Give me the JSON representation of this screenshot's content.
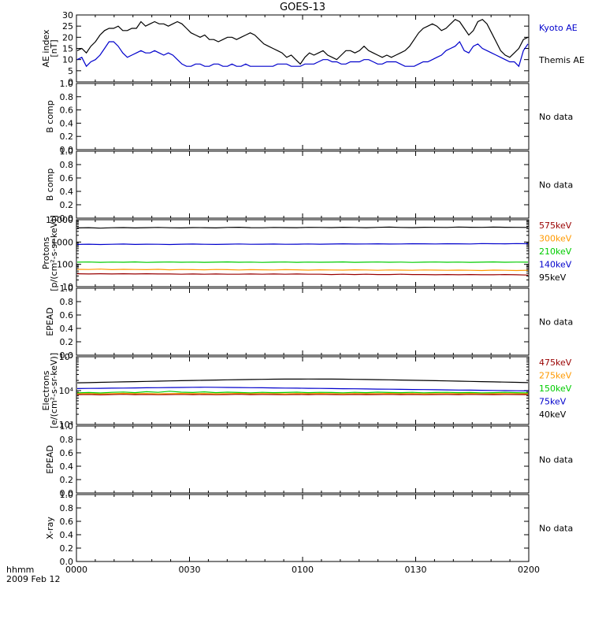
{
  "title": "GOES-13",
  "time_axis": {
    "unit_label": "hhmm",
    "date_label": "2009 Feb 12",
    "ticks": [
      "0000",
      "0030",
      "0100",
      "0130",
      "0200"
    ]
  },
  "no_data_text": "No data",
  "chart_data": [
    {
      "type": "line",
      "ylabel_lines": [
        "AE index",
        "[nT]"
      ],
      "ylim": [
        0,
        30
      ],
      "yscale": "linear",
      "yticks": [
        0,
        5,
        10,
        15,
        20,
        25,
        30
      ],
      "ytick_labels": [
        "0",
        "5",
        "10",
        "15",
        "20",
        "25",
        "30"
      ],
      "series": [
        {
          "name": "Kyoto AE",
          "color": "#0000cc",
          "values": [
            10,
            11,
            7,
            9,
            10,
            12,
            15,
            18,
            18,
            16,
            13,
            11,
            12,
            13,
            14,
            13,
            13,
            14,
            13,
            12,
            13,
            12,
            10,
            8,
            7,
            7,
            8,
            8,
            7,
            7,
            8,
            8,
            7,
            7,
            8,
            7,
            7,
            8,
            7,
            7,
            7,
            7,
            7,
            7,
            8,
            8,
            8,
            7,
            7,
            7,
            8,
            8,
            8,
            9,
            10,
            10,
            9,
            9,
            8,
            8,
            9,
            9,
            9,
            10,
            10,
            9,
            8,
            8,
            9,
            9,
            9,
            8,
            7,
            7,
            7,
            8,
            9,
            9,
            10,
            11,
            12,
            14,
            15,
            16,
            18,
            14,
            13,
            16,
            17,
            15,
            14,
            13,
            12,
            11,
            10,
            9,
            9,
            7,
            14,
            17
          ]
        },
        {
          "name": "Themis AE",
          "color": "#000000",
          "values": [
            14,
            15,
            13,
            16,
            18,
            21,
            23,
            24,
            24,
            25,
            23,
            23,
            24,
            24,
            27,
            25,
            26,
            27,
            26,
            26,
            25,
            26,
            27,
            26,
            24,
            22,
            21,
            20,
            21,
            19,
            19,
            18,
            19,
            20,
            20,
            19,
            20,
            21,
            22,
            21,
            19,
            17,
            16,
            15,
            14,
            13,
            11,
            12,
            10,
            8,
            11,
            13,
            12,
            13,
            14,
            12,
            11,
            10,
            12,
            14,
            14,
            13,
            14,
            16,
            14,
            13,
            12,
            11,
            12,
            11,
            12,
            13,
            14,
            16,
            19,
            22,
            24,
            25,
            26,
            25,
            23,
            24,
            26,
            28,
            27,
            24,
            21,
            23,
            27,
            28,
            26,
            22,
            18,
            14,
            12,
            11,
            13,
            15,
            19,
            20
          ]
        }
      ]
    },
    {
      "type": "line",
      "ylabel_lines": [
        "B comp"
      ],
      "ylim": [
        0,
        1
      ],
      "yscale": "linear",
      "yticks": [
        0,
        0.2,
        0.4,
        0.6,
        0.8,
        1.0
      ],
      "ytick_labels": [
        "0.0",
        "0.2",
        "0.4",
        "0.6",
        "0.8",
        "1.0"
      ],
      "no_data": true,
      "series": []
    },
    {
      "type": "line",
      "ylabel_lines": [
        "B comp"
      ],
      "ylim": [
        0,
        1
      ],
      "yscale": "linear",
      "yticks": [
        0,
        0.2,
        0.4,
        0.6,
        0.8,
        1.0
      ],
      "ytick_labels": [
        "0.0",
        "0.2",
        "0.4",
        "0.6",
        "0.8",
        "1.0"
      ],
      "no_data": true,
      "series": []
    },
    {
      "type": "line",
      "ylabel_lines": [
        "Protons",
        "[p/(cm²-s-sr-keV)]"
      ],
      "ylim": [
        10,
        10000
      ],
      "yscale": "log",
      "yticks": [
        10,
        100,
        1000,
        10000
      ],
      "ytick_labels": [
        "10",
        "100",
        "1000",
        "10000"
      ],
      "series": [
        {
          "name": "575keV",
          "color": "#990000",
          "values": [
            38,
            37,
            38,
            37,
            38,
            37,
            38,
            37,
            37,
            36,
            37,
            36,
            37,
            36,
            36,
            37,
            36,
            37,
            36,
            37,
            36,
            36,
            35,
            36,
            35,
            36,
            35,
            35,
            36,
            35,
            35,
            34,
            35,
            34,
            35,
            34,
            34,
            35,
            34,
            33
          ]
        },
        {
          "name": "300keV",
          "color": "#ff9900",
          "values": [
            60,
            59,
            61,
            58,
            60,
            59,
            58,
            60,
            57,
            59,
            58,
            57,
            59,
            58,
            56,
            58,
            57,
            56,
            58,
            57,
            55,
            57,
            56,
            55,
            57,
            56,
            54,
            56,
            55,
            54,
            56,
            55,
            54,
            55,
            54,
            53,
            55,
            54,
            53,
            54
          ]
        },
        {
          "name": "210keV",
          "color": "#00cc00",
          "values": [
            125,
            127,
            123,
            126,
            124,
            128,
            122,
            125,
            127,
            124,
            126,
            123,
            125,
            128,
            124,
            126,
            122,
            125,
            127,
            123,
            126,
            124,
            125,
            128,
            123,
            125,
            127,
            124,
            126,
            122,
            125,
            127,
            124,
            126,
            123,
            125,
            128,
            124,
            126,
            125
          ]
        },
        {
          "name": "140keV",
          "color": "#0000cc",
          "values": [
            780,
            800,
            770,
            790,
            810,
            780,
            800,
            790,
            770,
            800,
            810,
            790,
            780,
            800,
            820,
            790,
            800,
            810,
            790,
            800,
            820,
            800,
            810,
            830,
            810,
            820,
            830,
            810,
            820,
            840,
            830,
            820,
            840,
            830,
            820,
            850,
            840,
            830,
            850,
            840
          ]
        },
        {
          "name": "95keV",
          "color": "#000000",
          "values": [
            4300,
            4400,
            4200,
            4350,
            4450,
            4300,
            4400,
            4500,
            4350,
            4300,
            4450,
            4400,
            4300,
            4500,
            4600,
            4400,
            4350,
            4500,
            4450,
            4400,
            4550,
            4500,
            4450,
            4600,
            4500,
            4400,
            4550,
            4650,
            4500,
            4450,
            4600,
            4550,
            4500,
            4700,
            4600,
            4550,
            4650,
            4600,
            4550,
            4500
          ]
        }
      ]
    },
    {
      "type": "line",
      "ylabel_lines": [
        "EPEAD"
      ],
      "ylim": [
        0,
        1
      ],
      "yscale": "linear",
      "yticks": [
        0,
        0.2,
        0.4,
        0.6,
        0.8,
        1.0
      ],
      "ytick_labels": [
        "0.0",
        "0.2",
        "0.4",
        "0.6",
        "0.8",
        "1.0"
      ],
      "no_data": true,
      "series": []
    },
    {
      "type": "line",
      "ylabel_lines": [
        "Electrons",
        "[e/(cm²-s-sr-keV)]"
      ],
      "ylim": [
        1000,
        100000
      ],
      "yscale": "log",
      "yticks": [
        1000,
        10000,
        100000
      ],
      "ytick_labels": [
        "10³",
        "10⁴",
        "10⁵"
      ],
      "series": [
        {
          "name": "475keV",
          "color": "#990000",
          "values": [
            7600,
            7700,
            7500,
            7650,
            7800,
            7600,
            7700,
            7550,
            7650,
            7750,
            7600,
            7700,
            7550,
            7650,
            7800,
            7600,
            7700,
            7650,
            7550,
            7700,
            7600,
            7750,
            7650,
            7550,
            7700,
            7600,
            7650,
            7750,
            7600,
            7700,
            7550,
            7650,
            7700,
            7600,
            7750,
            7650,
            7600,
            7700,
            7650,
            7600
          ]
        },
        {
          "name": "275keV",
          "color": "#ff9900",
          "values": [
            8100,
            8200,
            8000,
            8150,
            8300,
            8100,
            8200,
            8050,
            8150,
            8250,
            8100,
            8200,
            8050,
            8150,
            8300,
            8100,
            8200,
            8150,
            8050,
            8200,
            8100,
            8250,
            8150,
            8050,
            8200,
            8100,
            8150,
            8250,
            8100,
            8200,
            8050,
            8150,
            8200,
            8100,
            8250,
            8150,
            8100,
            8200,
            8150,
            8100
          ]
        },
        {
          "name": "150keV",
          "color": "#00cc00",
          "values": [
            8600,
            8800,
            8500,
            8900,
            9100,
            8700,
            9300,
            8900,
            9600,
            9000,
            8800,
            9200,
            8700,
            9000,
            8800,
            8600,
            8900,
            8700,
            8800,
            9000,
            8700,
            8900,
            8800,
            8600,
            8900,
            8700,
            9000,
            8800,
            8700,
            8900,
            8600,
            8800,
            8900,
            8700,
            8800,
            8600,
            8700,
            8900,
            8700,
            8600
          ]
        },
        {
          "name": "75keV",
          "color": "#0000cc",
          "values": [
            11500,
            11600,
            11700,
            11800,
            11900,
            12000,
            12100,
            12200,
            12300,
            12400,
            12500,
            12600,
            12500,
            12400,
            12300,
            12200,
            12100,
            12000,
            11900,
            11800,
            11700,
            11600,
            11500,
            11400,
            11300,
            11200,
            11100,
            11000,
            10900,
            10800,
            10700,
            10600,
            10500,
            10400,
            10300,
            10200,
            10100,
            10000,
            9900,
            9800
          ]
        },
        {
          "name": "40keV",
          "color": "#000000",
          "values": [
            17000,
            17200,
            17500,
            17800,
            18100,
            18400,
            18700,
            19000,
            19300,
            19600,
            19900,
            20200,
            20500,
            20800,
            21100,
            21300,
            21500,
            21700,
            21800,
            21900,
            22000,
            21900,
            21800,
            21700,
            21500,
            21300,
            21100,
            20800,
            20500,
            20200,
            19900,
            19600,
            19300,
            19000,
            18700,
            18400,
            18100,
            17800,
            17500,
            17200
          ]
        }
      ]
    },
    {
      "type": "line",
      "ylabel_lines": [
        "EPEAD"
      ],
      "ylim": [
        0,
        1
      ],
      "yscale": "linear",
      "yticks": [
        0,
        0.2,
        0.4,
        0.6,
        0.8,
        1.0
      ],
      "ytick_labels": [
        "0.0",
        "0.2",
        "0.4",
        "0.6",
        "0.8",
        "1.0"
      ],
      "no_data": true,
      "series": []
    },
    {
      "type": "line",
      "ylabel_lines": [
        "X-ray"
      ],
      "ylim": [
        0,
        1
      ],
      "yscale": "linear",
      "yticks": [
        0,
        0.2,
        0.4,
        0.6,
        0.8,
        1.0
      ],
      "ytick_labels": [
        "0.0",
        "0.2",
        "0.4",
        "0.6",
        "0.8",
        "1.0"
      ],
      "no_data": true,
      "series": []
    }
  ]
}
